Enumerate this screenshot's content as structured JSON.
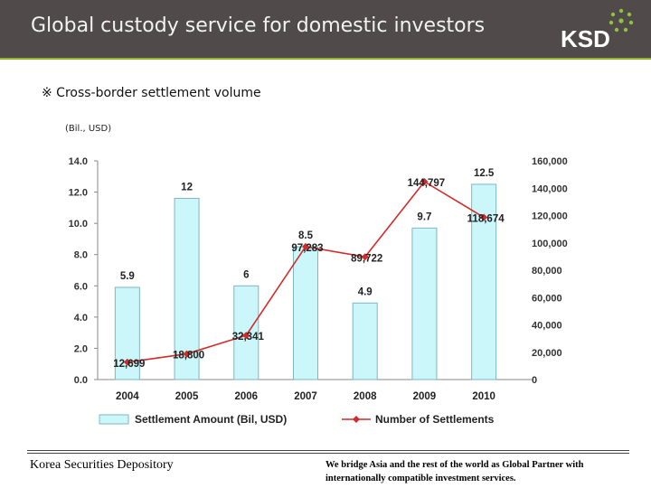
{
  "header": {
    "title": "Global custody service for domestic investors",
    "logo": "KSD"
  },
  "subtitle": "※ Cross-border settlement volume",
  "unit": "(Bil., USD)",
  "chart_data": {
    "type": "bar",
    "categories": [
      "2004",
      "2005",
      "2006",
      "2007",
      "2008",
      "2009",
      "2010"
    ],
    "series": [
      {
        "name": "Settlement Amount (Bil, USD)",
        "type": "bar",
        "axis": "left",
        "values": [
          5.9,
          11.6,
          6.0,
          8.5,
          4.9,
          9.7,
          12.5
        ],
        "labels": [
          "5.9",
          "12",
          "6",
          "8.5",
          "4.9",
          "9.7",
          "12.5"
        ]
      },
      {
        "name": "Number of Settlements",
        "type": "line",
        "axis": "right",
        "values": [
          12699,
          18800,
          32341,
          97283,
          89722,
          144797,
          118674
        ],
        "labels": [
          "12,699",
          "18,800",
          "32,341",
          "97,283",
          "89,722",
          "144,797",
          "118,674"
        ]
      }
    ],
    "y_left": {
      "min": 0,
      "max": 14,
      "ticks": [
        "0.0",
        "2.0",
        "4.0",
        "6.0",
        "8.0",
        "10.0",
        "12.0",
        "14.0"
      ]
    },
    "y_right": {
      "min": 0,
      "max": 160000,
      "ticks": [
        "0",
        "20,000",
        "40,000",
        "60,000",
        "80,000",
        "100,000",
        "120,000",
        "140,000",
        "160,000"
      ]
    },
    "legend": {
      "position": "bottom",
      "items": [
        "Settlement Amount (Bil, USD)",
        "Number of Settlements"
      ]
    },
    "colors": {
      "bar_fill": "#ccf7fa",
      "bar_stroke": "#7fb6c0",
      "line": "#d42a2a"
    }
  },
  "footer": {
    "left": "Korea Securities Depository",
    "right": "We bridge Asia and the rest of the world as Global Partner with internationally compatible investment services."
  }
}
